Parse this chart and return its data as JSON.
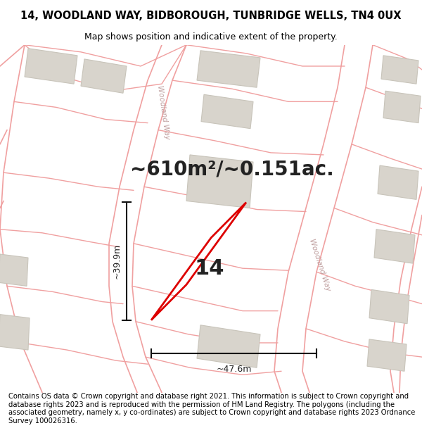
{
  "title_line1": "14, WOODLAND WAY, BIDBOROUGH, TUNBRIDGE WELLS, TN4 0UX",
  "title_line2": "Map shows position and indicative extent of the property.",
  "area_text": "~610m²/~0.151ac.",
  "label_number": "14",
  "dim_width": "~47.6m",
  "dim_height": "~39.9m",
  "footer": "Contains OS data © Crown copyright and database right 2021. This information is subject to Crown copyright and database rights 2023 and is reproduced with the permission of HM Land Registry. The polygons (including the associated geometry, namely x, y co-ordinates) are subject to Crown copyright and database rights 2023 Ordnance Survey 100026316.",
  "bg_color": "#ffffff",
  "map_bg": "#ffffff",
  "road_color": "#f0a0a0",
  "road_fill": "#faf5f5",
  "building_color": "#d8d4cc",
  "building_outline": "#c8c4ba",
  "plot_outline_color": "#dd0000",
  "plot_fill": "#f8f5f0",
  "dim_line_color": "#111111",
  "road_label_color": "#c0a0a0",
  "title_fontsize": 10.5,
  "subtitle_fontsize": 9.0,
  "area_fontsize": 20,
  "label_fontsize": 22,
  "dim_fontsize": 9,
  "footer_fontsize": 7.2
}
